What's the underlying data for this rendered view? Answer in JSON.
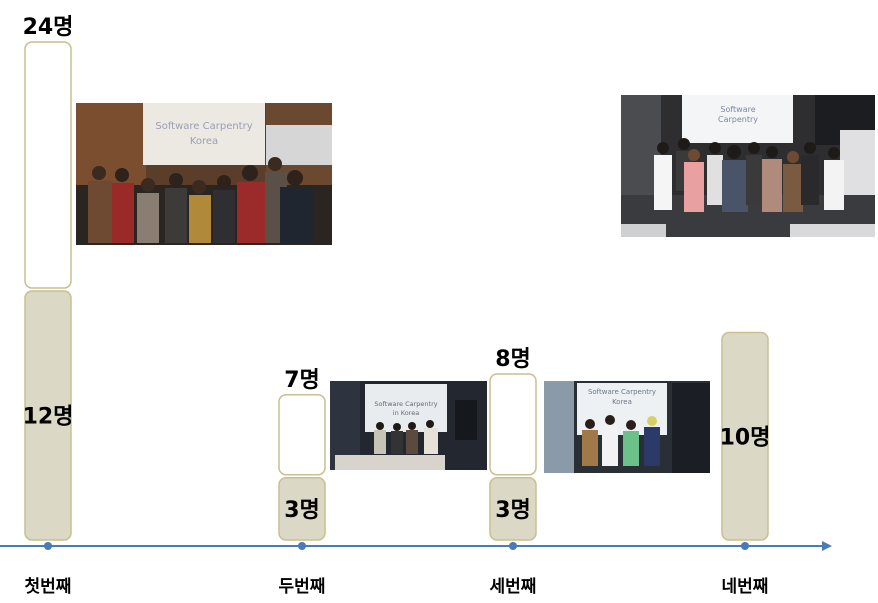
{
  "chart_data": {
    "type": "bar",
    "categories": [
      "첫번째",
      "두번째",
      "세번째",
      "네번째"
    ],
    "series": [
      {
        "values": [
          12,
          3,
          3,
          10
        ]
      },
      {
        "values": [
          24,
          7,
          8,
          10
        ]
      }
    ],
    "labels": {
      "inner": [
        "12명",
        "3명",
        "3명",
        "10명"
      ],
      "top": [
        "24명",
        "7명",
        "8명",
        ""
      ]
    },
    "colors": {
      "filled": "#dcd8c6",
      "border": "#c9bf8f",
      "outline_fill": "#ffffff",
      "axis": "#4a7ab8"
    }
  },
  "photos": [
    {
      "name": "photo-session-1",
      "screen_title": "Software Carpentry",
      "screen_subtitle": "Korea"
    },
    {
      "name": "photo-session-2",
      "screen_title": "Software Carpentry",
      "screen_subtitle": "in Korea"
    },
    {
      "name": "photo-session-3",
      "screen_title": "Software Carpentry",
      "screen_subtitle": "Korea"
    },
    {
      "name": "photo-session-4",
      "screen_title": "Software",
      "screen_subtitle": "Carpentry"
    }
  ]
}
